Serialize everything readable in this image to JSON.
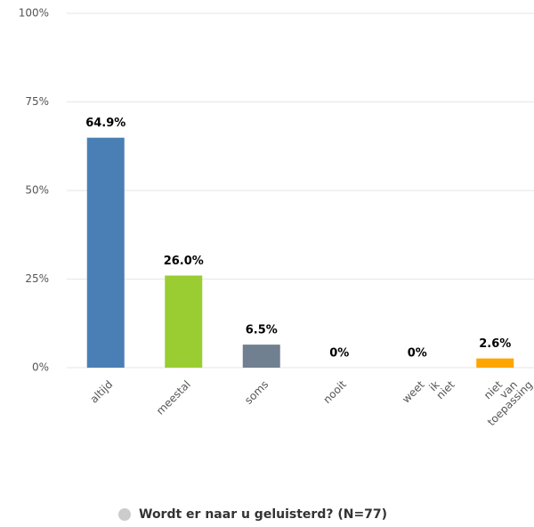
{
  "chart_data": {
    "type": "bar",
    "categories": [
      "altijd",
      "meestal",
      "soms",
      "nooit",
      "weet ik niet",
      "niet van toepassing"
    ],
    "series": [
      {
        "name": "Wordt er naar u geluisterd? (N=77)",
        "color": "#cccccc",
        "values": [
          64.9,
          26.0,
          6.5,
          0,
          0,
          2.6
        ],
        "value_labels": [
          "64.9%",
          "26.0%",
          "6.5%",
          "0%",
          "0%",
          "2.6%"
        ],
        "colors": [
          "#4a7fb5",
          "#9acd32",
          "#708090",
          null,
          null,
          "#ffa500"
        ]
      }
    ],
    "ylim": [
      0,
      100
    ],
    "yticks": [
      {
        "value": 0,
        "label": "0%"
      },
      {
        "value": 25,
        "label": "25%"
      },
      {
        "value": 50,
        "label": "50%"
      },
      {
        "value": 75,
        "label": "75%"
      },
      {
        "value": 100,
        "label": "100%"
      }
    ],
    "grid": true,
    "legend": "bottom"
  }
}
